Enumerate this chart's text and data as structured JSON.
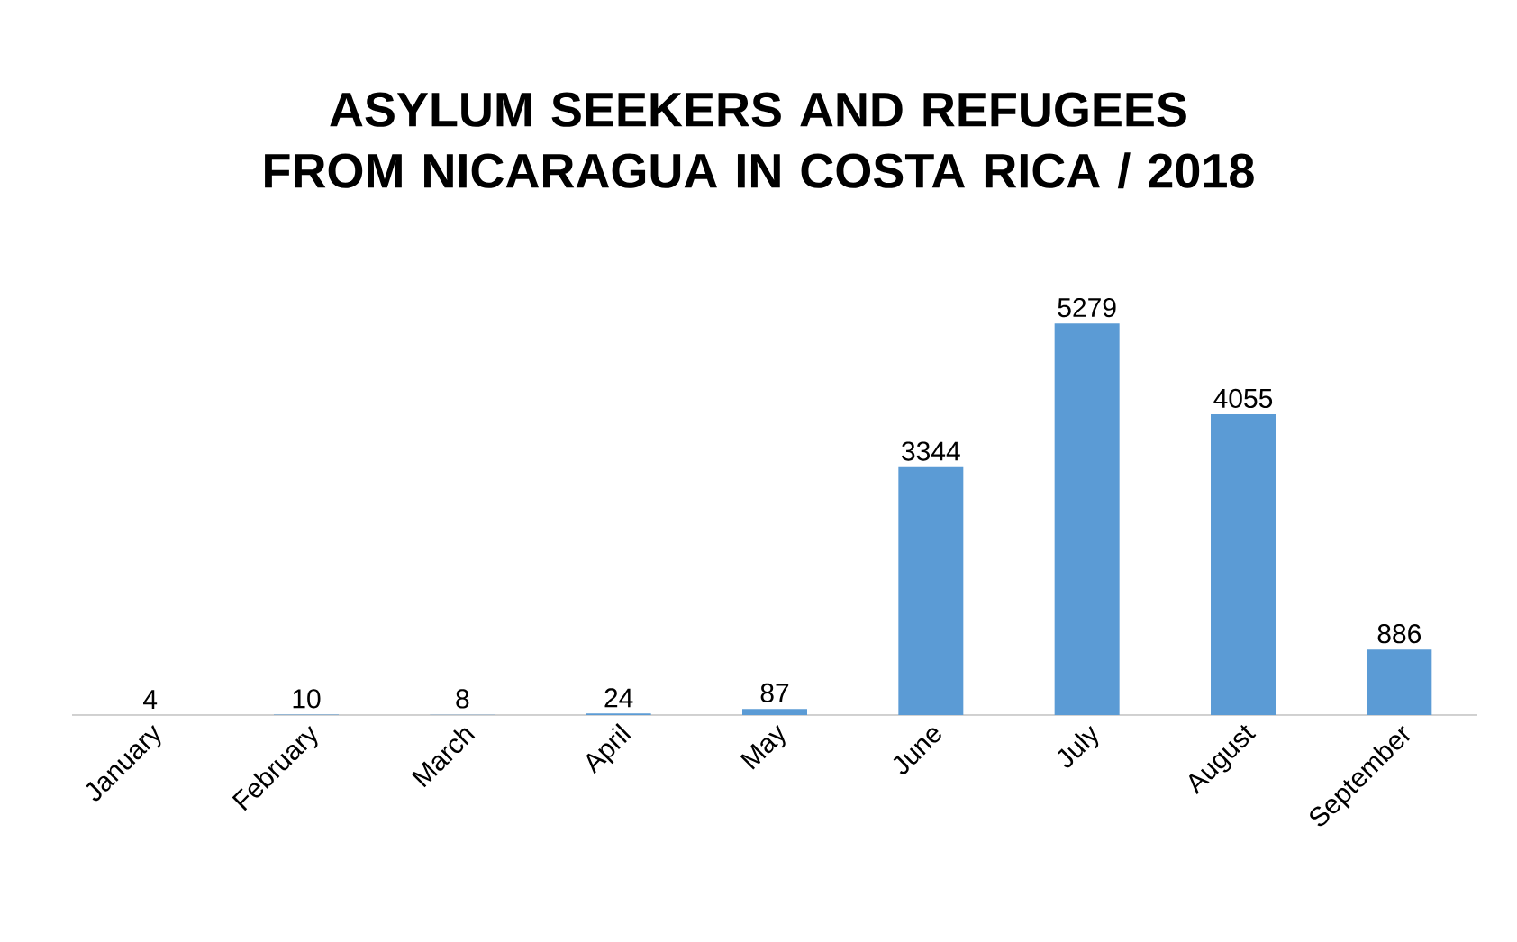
{
  "chart_data": {
    "type": "bar",
    "title": "ASYLUM SEEKERS AND REFUGEES FROM NICARAGUA IN COSTA RICA / 2018",
    "categories": [
      "January",
      "February",
      "March",
      "April",
      "May",
      "June",
      "July",
      "August",
      "September"
    ],
    "values": [
      4,
      10,
      8,
      24,
      87,
      3344,
      5279,
      4055,
      886
    ],
    "color": "#5b9bd5",
    "data_labels": true
  }
}
